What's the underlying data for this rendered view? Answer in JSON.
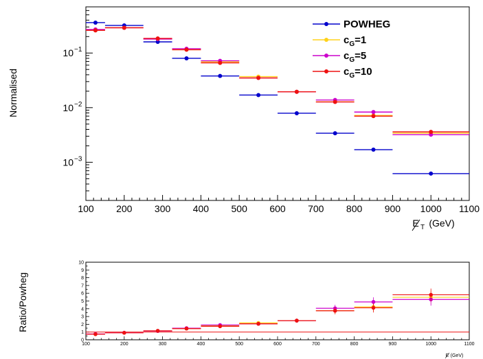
{
  "chart_data": [
    {
      "type": "scatter",
      "ylabel": "Normalised",
      "xlabel": "E_T (GeV)",
      "xlim": [
        100,
        1100
      ],
      "ylim": [
        0.0002,
        0.7
      ],
      "yscale": "log",
      "x_tick_labels": [
        "100",
        "200",
        "300",
        "400",
        "500",
        "600",
        "700",
        "800",
        "900",
        "1000",
        "1100"
      ],
      "y_tick_labels": [
        {
          "value": 0.1,
          "base": "10",
          "exp": "−1"
        },
        {
          "value": 0.01,
          "base": "10",
          "exp": "−2"
        },
        {
          "value": 0.001,
          "base": "10",
          "exp": "−3"
        }
      ],
      "bins": [
        [
          100,
          150
        ],
        [
          150,
          250
        ],
        [
          250,
          325
        ],
        [
          325,
          400
        ],
        [
          400,
          500
        ],
        [
          500,
          600
        ],
        [
          600,
          700
        ],
        [
          700,
          800
        ],
        [
          800,
          900
        ],
        [
          900,
          1100
        ]
      ],
      "x_centers": [
        125,
        200,
        287.5,
        362.5,
        450,
        550,
        650,
        750,
        850,
        1000
      ],
      "series": [
        {
          "name": "POWHEG",
          "sub": "",
          "color": "#0000cc",
          "values": [
            0.36,
            0.32,
            0.16,
            0.08,
            0.038,
            0.017,
            0.0079,
            0.0034,
            0.0017,
            0.00062
          ]
        },
        {
          "name": "c",
          "sub": "G",
          "suffix": "=1",
          "color": "#ffd21a",
          "values": [
            0.26,
            0.29,
            0.18,
            0.115,
            0.069,
            0.037,
            0.0195,
            0.0128,
            0.0072,
            0.0034
          ]
        },
        {
          "name": "c",
          "sub": "G",
          "suffix": "=5",
          "color": "#cc00cc",
          "values": [
            0.27,
            0.29,
            0.18,
            0.12,
            0.072,
            0.035,
            0.0195,
            0.0138,
            0.0083,
            0.0032
          ]
        },
        {
          "name": "c",
          "sub": "G",
          "suffix": "=10",
          "color": "#ee1111",
          "values": [
            0.26,
            0.29,
            0.185,
            0.115,
            0.066,
            0.035,
            0.0195,
            0.0127,
            0.007,
            0.0036
          ]
        }
      ],
      "legend": "top-right"
    },
    {
      "type": "scatter",
      "ylabel": "Ratio/Powheg",
      "xlabel": "E_T (GeV)",
      "xlim": [
        100,
        1100
      ],
      "ylim": [
        0,
        10
      ],
      "y_tick_labels": [
        "0",
        "1",
        "2",
        "3",
        "4",
        "5",
        "6",
        "7",
        "8",
        "9",
        "10"
      ],
      "x_tick_labels": [
        "100",
        "200",
        "300",
        "400",
        "500",
        "600",
        "700",
        "800",
        "900",
        "1000",
        "1100"
      ],
      "bins": [
        [
          100,
          150
        ],
        [
          150,
          250
        ],
        [
          250,
          325
        ],
        [
          325,
          400
        ],
        [
          400,
          500
        ],
        [
          500,
          600
        ],
        [
          600,
          700
        ],
        [
          700,
          800
        ],
        [
          800,
          900
        ],
        [
          900,
          1100
        ]
      ],
      "x_centers": [
        125,
        200,
        287.5,
        362.5,
        450,
        550,
        650,
        750,
        850,
        1000
      ],
      "reference_line": 1,
      "series": [
        {
          "color": "#ffd21a",
          "values": [
            0.72,
            0.9,
            1.13,
            1.44,
            1.82,
            2.18,
            2.47,
            3.76,
            4.24,
            5.48
          ]
        },
        {
          "color": "#cc00cc",
          "values": [
            0.75,
            0.91,
            1.13,
            1.5,
            1.9,
            2.06,
            2.47,
            4.06,
            4.88,
            5.2
          ]
        },
        {
          "color": "#ee1111",
          "values": [
            0.72,
            0.9,
            1.16,
            1.44,
            1.74,
            2.06,
            2.47,
            3.74,
            4.12,
            5.8
          ]
        }
      ],
      "errors": [
        0.08,
        0.08,
        0.1,
        0.12,
        0.15,
        0.2,
        0.25,
        0.45,
        0.6,
        0.8
      ]
    }
  ]
}
